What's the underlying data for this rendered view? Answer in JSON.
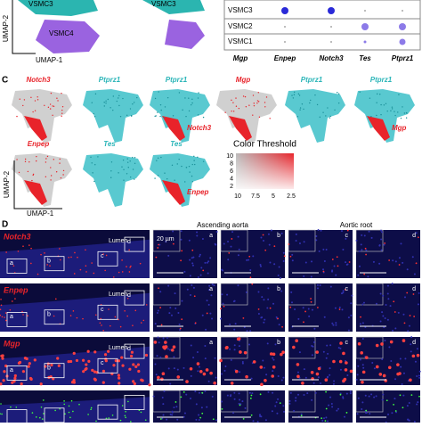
{
  "top": {
    "umap": {
      "clusters": [
        "VSMC3",
        "VSMC4"
      ],
      "second_cluster": "VSMC3",
      "y_axis": "UMAP-2",
      "x_axis": "UMAP-1"
    },
    "dotplot": {
      "rows": [
        "VSMC3",
        "VSMC2",
        "VSMC1"
      ],
      "columns": [
        "Mgp",
        "Enpep",
        "Notch3",
        "Tes",
        "Ptprz1"
      ]
    }
  },
  "panel_c": {
    "label": "C",
    "plots": [
      {
        "title": "Notch3",
        "color": "red"
      },
      {
        "title": "Ptprz1",
        "color": "cyan"
      },
      {
        "title": "Ptprz1",
        "color": "cyan",
        "inset": "Notch3"
      },
      {
        "title": "Mgp",
        "color": "red"
      },
      {
        "title": "Ptprz1",
        "color": "cyan"
      },
      {
        "title": "Ptprz1",
        "color": "cyan",
        "inset": "Mgp"
      },
      {
        "title": "Enpep",
        "color": "red"
      },
      {
        "title": "Tes",
        "color": "cyan"
      },
      {
        "title": "Tes",
        "color": "cyan",
        "inset": "Enpep"
      }
    ],
    "y_axis": "UMAP-2",
    "x_axis": "UMAP-1",
    "legend": {
      "title": "Color Threshold",
      "yticks": [
        "10",
        "8",
        "6",
        "4",
        "2"
      ],
      "xticks": [
        "10",
        "7.5",
        "5",
        "2.5"
      ]
    }
  },
  "panel_d": {
    "label": "D",
    "headers": [
      "Ascending aorta",
      "Aortic root"
    ],
    "scale_bar": "20 µm",
    "rows": [
      {
        "gene": "Notch3",
        "lumen": "Lumen",
        "boxes": [
          "a",
          "b",
          "c",
          "d"
        ],
        "panels": [
          "a",
          "b",
          "c",
          "d"
        ]
      },
      {
        "gene": "Enpep",
        "lumen": "Lumen",
        "boxes": [
          "a",
          "b",
          "c",
          "d"
        ],
        "panels": [
          "a",
          "b",
          "c",
          "d"
        ]
      },
      {
        "gene": "Mgp",
        "lumen": "Lumen",
        "boxes": [
          "a",
          "b",
          "c",
          "d"
        ],
        "panels": [
          "a",
          "b",
          "c",
          "d"
        ]
      }
    ]
  }
}
